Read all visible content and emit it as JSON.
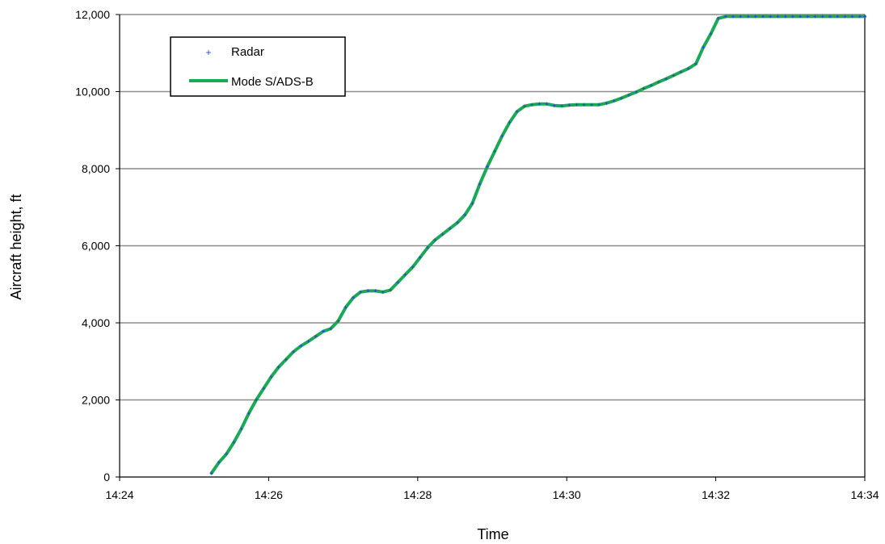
{
  "chart_data": {
    "type": "line",
    "xlabel": "Time",
    "ylabel": "Aircraft height, ft",
    "x_range": [
      "14:24",
      "14:34"
    ],
    "x_tick_labels": [
      "14:24",
      "14:26",
      "14:28",
      "14:30",
      "14:32",
      "14:34"
    ],
    "ylim": [
      0,
      12000
    ],
    "y_tick_labels": [
      "0",
      "2,000",
      "4,000",
      "6,000",
      "8,000",
      "10,000",
      "12,000"
    ],
    "y_ticks": [
      0,
      2000,
      4000,
      6000,
      8000,
      10000,
      12000
    ],
    "grid": "horizontal",
    "legend_position": "top-left",
    "series": [
      {
        "name": "Radar",
        "style": "markers",
        "color": "#3344cc",
        "x": [
          "14:25:14",
          "14:25:20",
          "14:25:26",
          "14:25:32",
          "14:25:38",
          "14:25:44",
          "14:25:50",
          "14:25:56",
          "14:26:02",
          "14:26:08",
          "14:26:14",
          "14:26:20",
          "14:26:26",
          "14:26:32",
          "14:26:38",
          "14:26:44",
          "14:26:50",
          "14:26:56",
          "14:27:02",
          "14:27:08",
          "14:27:14",
          "14:27:20",
          "14:27:26",
          "14:27:32",
          "14:27:38",
          "14:27:44",
          "14:27:50",
          "14:27:56",
          "14:28:02",
          "14:28:08",
          "14:28:14",
          "14:28:20",
          "14:28:26",
          "14:28:32",
          "14:28:38",
          "14:28:44",
          "14:28:50",
          "14:28:56",
          "14:29:02",
          "14:29:08",
          "14:29:14",
          "14:29:20",
          "14:29:26",
          "14:29:32",
          "14:29:38",
          "14:29:44",
          "14:29:50",
          "14:29:56",
          "14:30:02",
          "14:30:08",
          "14:30:14",
          "14:30:20",
          "14:30:26",
          "14:30:32",
          "14:30:38",
          "14:30:44",
          "14:30:50",
          "14:30:56",
          "14:31:02",
          "14:31:08",
          "14:31:14",
          "14:31:20",
          "14:31:26",
          "14:31:32",
          "14:31:38",
          "14:31:44",
          "14:31:50",
          "14:31:56",
          "14:32:02",
          "14:32:08",
          "14:32:14",
          "14:32:20",
          "14:32:26",
          "14:32:32",
          "14:32:38",
          "14:32:44",
          "14:32:50",
          "14:32:56",
          "14:33:02",
          "14:33:08",
          "14:33:14",
          "14:33:20",
          "14:33:26",
          "14:33:32",
          "14:33:38",
          "14:33:44",
          "14:33:50",
          "14:33:56",
          "14:34:00"
        ],
        "y": [
          100,
          380,
          600,
          900,
          1250,
          1650,
          2000,
          2300,
          2600,
          2850,
          3050,
          3250,
          3400,
          3520,
          3650,
          3780,
          3850,
          4050,
          4400,
          4650,
          4800,
          4830,
          4830,
          4800,
          4850,
          5050,
          5250,
          5450,
          5700,
          5950,
          6150,
          6300,
          6450,
          6600,
          6800,
          7100,
          7600,
          8050,
          8450,
          8850,
          9200,
          9480,
          9620,
          9660,
          9680,
          9680,
          9640,
          9630,
          9650,
          9660,
          9660,
          9660,
          9660,
          9700,
          9760,
          9830,
          9910,
          9990,
          10080,
          10160,
          10250,
          10330,
          10420,
          10510,
          10600,
          10720,
          11150,
          11500,
          11900,
          11950,
          11950,
          11950,
          11950,
          11950,
          11950,
          11950,
          11950,
          11950,
          11950,
          11950,
          11950,
          11950,
          11950,
          11950,
          11950,
          11950,
          11950,
          11950,
          11950
        ]
      },
      {
        "name": "Mode S/ADS-B",
        "style": "line",
        "color": "#1aaa55",
        "x": [
          "14:25:14",
          "14:25:20",
          "14:25:26",
          "14:25:32",
          "14:25:38",
          "14:25:44",
          "14:25:50",
          "14:25:56",
          "14:26:02",
          "14:26:08",
          "14:26:14",
          "14:26:20",
          "14:26:26",
          "14:26:32",
          "14:26:38",
          "14:26:44",
          "14:26:50",
          "14:26:56",
          "14:27:02",
          "14:27:08",
          "14:27:14",
          "14:27:20",
          "14:27:26",
          "14:27:32",
          "14:27:38",
          "14:27:44",
          "14:27:50",
          "14:27:56",
          "14:28:02",
          "14:28:08",
          "14:28:14",
          "14:28:20",
          "14:28:26",
          "14:28:32",
          "14:28:38",
          "14:28:44",
          "14:28:50",
          "14:28:56",
          "14:29:02",
          "14:29:08",
          "14:29:14",
          "14:29:20",
          "14:29:26",
          "14:29:32",
          "14:29:38",
          "14:29:44",
          "14:29:50",
          "14:29:56",
          "14:30:02",
          "14:30:08",
          "14:30:14",
          "14:30:20",
          "14:30:26",
          "14:30:32",
          "14:30:38",
          "14:30:44",
          "14:30:50",
          "14:30:56",
          "14:31:02",
          "14:31:08",
          "14:31:14",
          "14:31:20",
          "14:31:26",
          "14:31:32",
          "14:31:38",
          "14:31:44",
          "14:31:50",
          "14:31:56",
          "14:32:02",
          "14:32:08",
          "14:32:14",
          "14:32:20",
          "14:32:26",
          "14:32:32",
          "14:32:38",
          "14:32:44",
          "14:32:50",
          "14:32:56",
          "14:33:02",
          "14:33:08",
          "14:33:14",
          "14:33:20",
          "14:33:26",
          "14:33:32",
          "14:33:38",
          "14:33:44",
          "14:33:50",
          "14:33:56",
          "14:34:00"
        ],
        "y": [
          100,
          380,
          600,
          900,
          1250,
          1650,
          2000,
          2300,
          2600,
          2850,
          3050,
          3250,
          3400,
          3520,
          3650,
          3780,
          3850,
          4050,
          4400,
          4650,
          4800,
          4830,
          4830,
          4800,
          4850,
          5050,
          5250,
          5450,
          5700,
          5950,
          6150,
          6300,
          6450,
          6600,
          6800,
          7100,
          7600,
          8050,
          8450,
          8850,
          9200,
          9480,
          9620,
          9660,
          9680,
          9680,
          9640,
          9630,
          9650,
          9660,
          9660,
          9660,
          9660,
          9700,
          9760,
          9830,
          9910,
          9990,
          10080,
          10160,
          10250,
          10330,
          10420,
          10510,
          10600,
          10720,
          11150,
          11500,
          11900,
          11950,
          11950,
          11950,
          11950,
          11950,
          11950,
          11950,
          11950,
          11950,
          11950,
          11950,
          11950,
          11950,
          11950,
          11950,
          11950,
          11950,
          11950,
          11950,
          11950
        ]
      }
    ]
  }
}
